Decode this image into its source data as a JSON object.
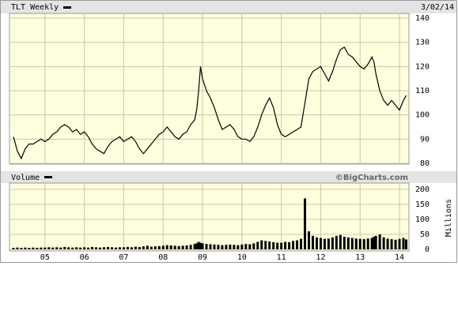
{
  "chart_data": [
    {
      "type": "line",
      "title": "TLT Weekly",
      "annotation": "3/02/14",
      "color": "#000000",
      "grid": true,
      "x": [
        2004.2,
        2004.3,
        2004.4,
        2004.5,
        2004.6,
        2004.7,
        2004.8,
        2004.9,
        2005.0,
        2005.1,
        2005.2,
        2005.3,
        2005.4,
        2005.5,
        2005.6,
        2005.7,
        2005.8,
        2005.9,
        2006.0,
        2006.1,
        2006.2,
        2006.3,
        2006.4,
        2006.5,
        2006.6,
        2006.7,
        2006.8,
        2006.9,
        2007.0,
        2007.1,
        2007.2,
        2007.3,
        2007.4,
        2007.5,
        2007.6,
        2007.7,
        2007.8,
        2007.9,
        2008.0,
        2008.1,
        2008.2,
        2008.3,
        2008.4,
        2008.5,
        2008.6,
        2008.7,
        2008.8,
        2008.85,
        2008.9,
        2008.95,
        2009.0,
        2009.1,
        2009.2,
        2009.3,
        2009.4,
        2009.5,
        2009.6,
        2009.7,
        2009.8,
        2009.9,
        2010.0,
        2010.1,
        2010.2,
        2010.3,
        2010.4,
        2010.5,
        2010.6,
        2010.7,
        2010.8,
        2010.9,
        2011.0,
        2011.1,
        2011.2,
        2011.3,
        2011.4,
        2011.5,
        2011.6,
        2011.7,
        2011.8,
        2011.9,
        2012.0,
        2012.1,
        2012.2,
        2012.3,
        2012.4,
        2012.5,
        2012.6,
        2012.7,
        2012.8,
        2012.9,
        2013.0,
        2013.1,
        2013.2,
        2013.3,
        2013.35,
        2013.4,
        2013.5,
        2013.6,
        2013.7,
        2013.8,
        2013.9,
        2014.0,
        2014.1,
        2014.17
      ],
      "values": [
        91,
        85,
        82,
        86,
        88,
        88,
        89,
        90,
        89,
        90,
        92,
        93,
        95,
        96,
        95,
        93,
        94,
        92,
        93,
        91,
        88,
        86,
        85,
        84,
        87,
        89,
        90,
        91,
        89,
        90,
        91,
        89,
        86,
        84,
        86,
        88,
        90,
        92,
        93,
        95,
        93,
        91,
        90,
        92,
        93,
        96,
        98,
        102,
        110,
        120,
        115,
        110,
        107,
        103,
        98,
        94,
        95,
        96,
        94,
        91,
        90,
        90,
        89,
        91,
        95,
        100,
        104,
        107,
        103,
        96,
        92,
        91,
        92,
        93,
        94,
        95,
        105,
        115,
        118,
        119,
        120,
        117,
        114,
        118,
        123,
        127,
        128,
        125,
        124,
        122,
        120,
        119,
        121,
        124,
        122,
        117,
        110,
        106,
        104,
        106,
        104,
        102,
        106,
        108
      ],
      "xlim": [
        2004.1,
        2014.24
      ],
      "xticks": [
        {
          "value": 2005,
          "label": "05"
        },
        {
          "value": 2006,
          "label": "06"
        },
        {
          "value": 2007,
          "label": "07"
        },
        {
          "value": 2008,
          "label": "08"
        },
        {
          "value": 2009,
          "label": "09"
        },
        {
          "value": 2010,
          "label": "10"
        },
        {
          "value": 2011,
          "label": "11"
        },
        {
          "value": 2012,
          "label": "12"
        },
        {
          "value": 2013,
          "label": "13"
        },
        {
          "value": 2014,
          "label": "14"
        }
      ],
      "ylim": [
        80,
        140
      ],
      "yticks": [
        80,
        90,
        100,
        110,
        120,
        130,
        140
      ]
    },
    {
      "type": "bar",
      "title": "Volume",
      "annotation": "©BigCharts.com",
      "ylabel": "Millions",
      "color": "#000000",
      "grid": true,
      "x": [
        2004.2,
        2004.3,
        2004.4,
        2004.5,
        2004.6,
        2004.7,
        2004.8,
        2004.9,
        2005.0,
        2005.1,
        2005.2,
        2005.3,
        2005.4,
        2005.5,
        2005.6,
        2005.7,
        2005.8,
        2005.9,
        2006.0,
        2006.1,
        2006.2,
        2006.3,
        2006.4,
        2006.5,
        2006.6,
        2006.7,
        2006.8,
        2006.9,
        2007.0,
        2007.1,
        2007.2,
        2007.3,
        2007.4,
        2007.5,
        2007.6,
        2007.7,
        2007.8,
        2007.9,
        2008.0,
        2008.1,
        2008.2,
        2008.3,
        2008.4,
        2008.5,
        2008.6,
        2008.7,
        2008.8,
        2008.85,
        2008.9,
        2008.95,
        2009.0,
        2009.1,
        2009.2,
        2009.3,
        2009.4,
        2009.5,
        2009.6,
        2009.7,
        2009.8,
        2009.9,
        2010.0,
        2010.1,
        2010.2,
        2010.3,
        2010.4,
        2010.5,
        2010.6,
        2010.7,
        2010.8,
        2010.9,
        2011.0,
        2011.1,
        2011.2,
        2011.3,
        2011.4,
        2011.5,
        2011.6,
        2011.7,
        2011.8,
        2011.9,
        2012.0,
        2012.1,
        2012.2,
        2012.3,
        2012.4,
        2012.5,
        2012.6,
        2012.7,
        2012.8,
        2012.9,
        2013.0,
        2013.1,
        2013.2,
        2013.3,
        2013.35,
        2013.4,
        2013.5,
        2013.6,
        2013.7,
        2013.8,
        2013.9,
        2014.0,
        2014.1,
        2014.17
      ],
      "values": [
        5,
        6,
        5,
        6,
        5,
        6,
        5,
        6,
        6,
        7,
        6,
        7,
        6,
        8,
        7,
        6,
        7,
        6,
        7,
        6,
        8,
        7,
        6,
        7,
        8,
        7,
        6,
        7,
        7,
        8,
        7,
        9,
        8,
        10,
        12,
        9,
        10,
        11,
        12,
        14,
        13,
        12,
        11,
        12,
        13,
        15,
        18,
        20,
        25,
        22,
        20,
        18,
        17,
        16,
        15,
        14,
        15,
        16,
        15,
        14,
        16,
        18,
        17,
        20,
        25,
        30,
        28,
        26,
        24,
        22,
        22,
        25,
        24,
        28,
        30,
        35,
        170,
        60,
        45,
        40,
        38,
        35,
        36,
        40,
        45,
        48,
        42,
        40,
        38,
        36,
        35,
        34,
        36,
        38,
        42,
        45,
        50,
        40,
        36,
        34,
        32,
        35,
        38,
        33
      ],
      "xlim": [
        2004.1,
        2014.24
      ],
      "xticks": [
        {
          "value": 2005,
          "label": "05"
        },
        {
          "value": 2006,
          "label": "06"
        },
        {
          "value": 2007,
          "label": "07"
        },
        {
          "value": 2008,
          "label": "08"
        },
        {
          "value": 2009,
          "label": "09"
        },
        {
          "value": 2010,
          "label": "10"
        },
        {
          "value": 2011,
          "label": "11"
        },
        {
          "value": 2012,
          "label": "12"
        },
        {
          "value": 2013,
          "label": "13"
        },
        {
          "value": 2014,
          "label": "14"
        }
      ],
      "ylim": [
        0,
        200
      ],
      "yticks": [
        0,
        50,
        100,
        150,
        200
      ]
    }
  ]
}
